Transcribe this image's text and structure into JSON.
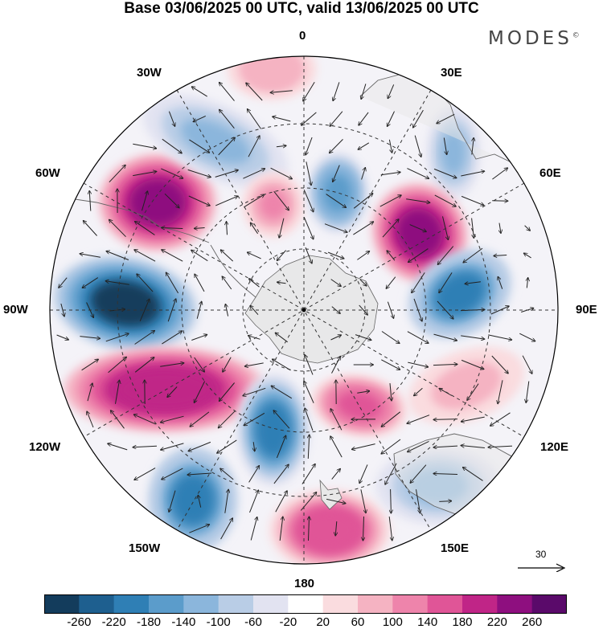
{
  "title": "Base 03/06/2025 00 UTC, valid 13/06/2025 00 UTC",
  "brand": "MODES",
  "brand_mark": "©",
  "longitude_labels": {
    "lon_0": "0",
    "lon_30e": "30E",
    "lon_60e": "60E",
    "lon_90e": "90E",
    "lon_120e": "120E",
    "lon_150e": "150E",
    "lon_180": "180",
    "lon_150w": "150W",
    "lon_120w": "120W",
    "lon_90w": "90W",
    "lon_60w": "60W",
    "lon_30w": "30W"
  },
  "reference_vector": {
    "label": "30"
  },
  "colorbar": {
    "ticks": [
      "-260",
      "-220",
      "-180",
      "-140",
      "-100",
      "-60",
      "-20",
      "20",
      "60",
      "100",
      "140",
      "180",
      "220",
      "260"
    ],
    "colors": [
      "#133c5c",
      "#1e5f8f",
      "#2f7fb5",
      "#5b9ccb",
      "#8bb6dc",
      "#b9cde6",
      "#e2e3f1",
      "#ffffff",
      "#fadcdf",
      "#f5b3c2",
      "#ee84ab",
      "#e05597",
      "#c02587",
      "#8e0f7f",
      "#5a0a6a"
    ]
  },
  "anomaly_centers": [
    {
      "name": "low-atlantic-60w",
      "sign": "positive",
      "value": 240
    },
    {
      "name": "high-0",
      "sign": "positive",
      "value": 100
    },
    {
      "name": "low-30w",
      "sign": "negative",
      "value": -120
    },
    {
      "name": "low-30e",
      "sign": "negative",
      "value": -120
    },
    {
      "name": "low-15w-inner",
      "sign": "positive",
      "value": 120
    },
    {
      "name": "low-15e-inner",
      "sign": "negative",
      "value": -160
    },
    {
      "name": "high-50e",
      "sign": "positive",
      "value": 240
    },
    {
      "name": "low-80e",
      "sign": "negative",
      "value": -200
    },
    {
      "name": "low-90w",
      "sign": "negative",
      "value": -260
    },
    {
      "name": "high-110w",
      "sign": "positive",
      "value": 220
    },
    {
      "name": "low-160w",
      "sign": "negative",
      "value": -200
    },
    {
      "name": "low-140w",
      "sign": "negative",
      "value": -180
    },
    {
      "name": "high-180",
      "sign": "positive",
      "value": 180
    },
    {
      "name": "high-145e",
      "sign": "positive",
      "value": 160
    },
    {
      "name": "low-135e",
      "sign": "negative",
      "value": -100
    },
    {
      "name": "high-105e",
      "sign": "positive",
      "value": 80
    }
  ]
}
